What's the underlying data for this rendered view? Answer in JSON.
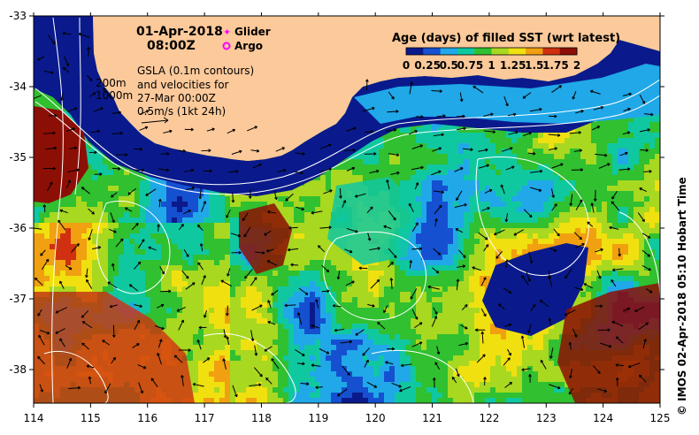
{
  "header": {
    "date": "01-Apr-2018",
    "time": "08:00Z"
  },
  "legend": {
    "glider_label": "Glider",
    "argo_label": "Argo",
    "glider_color": "#ff00ff",
    "argo_color": "#ff00ff"
  },
  "annotations": {
    "contour_200": "200m",
    "contour_1000": "1000m",
    "gsla_line1": "GSLA (0.1m contours)",
    "gsla_line2": "and velocities for",
    "gsla_line3": "27-Mar 00:00Z",
    "gsla_line4": "0.5m/s (1kt 24h)"
  },
  "colorbar": {
    "title": "Age (days) of filled SST (wrt latest)",
    "ticks": [
      "0",
      "0.25",
      "0.5",
      "0.75",
      "1",
      "1.25",
      "1.5",
      "1.75",
      "2"
    ],
    "colors": [
      "#0a1a8c",
      "#1550d0",
      "#20a8e8",
      "#10c8a0",
      "#30c030",
      "#a8d820",
      "#f0e010",
      "#f0a010",
      "#d03010",
      "#8c0f05"
    ]
  },
  "axes": {
    "x_ticks": [
      "114",
      "115",
      "116",
      "117",
      "118",
      "119",
      "120",
      "121",
      "122",
      "123",
      "124",
      "125"
    ],
    "y_ticks": [
      "-33",
      "-34",
      "-35",
      "-36",
      "-37",
      "-38"
    ]
  },
  "credit": "© IMOS 02-Apr-2018 05:10 Hobart Time",
  "colors": {
    "land": "#fcc99a",
    "contour": "#ffffff",
    "arrow": "#000000"
  }
}
